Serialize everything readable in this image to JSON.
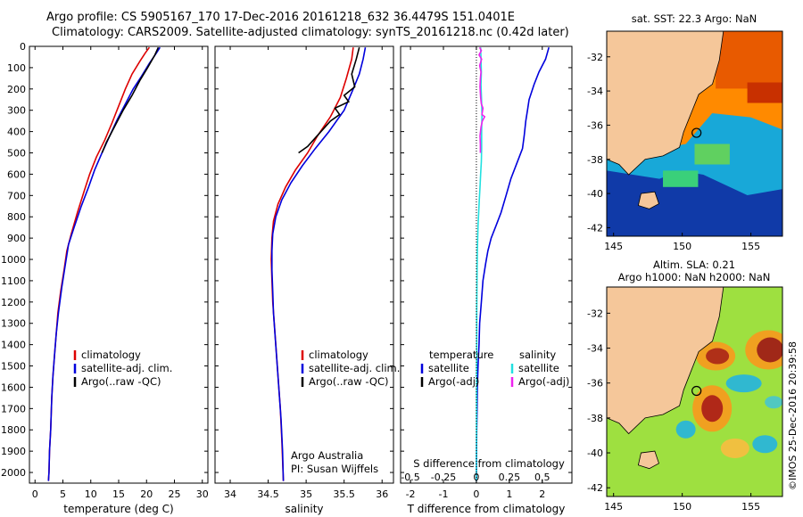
{
  "header": {
    "line1": "Argo profile: CS 5905167_170 17-Dec-2016 20161218_632 36.4479S 151.0401E",
    "line2": "Climatology: CARS2009. Satellite-adjusted climatology: synTS_20161218.nc (0.42d later)"
  },
  "copyright": "©IMOS 25-Dec-2016 20:39:58",
  "colors": {
    "climatology": "#dd0000",
    "satellite": "#0000dd",
    "argo": "#000000",
    "salinity_satellite": "#22e0e0",
    "salinity_argo": "#ee22ee",
    "land": "#f5c79a"
  },
  "chart_data": [
    {
      "id": "temperature",
      "type": "line",
      "xlabel": "temperature (deg C)",
      "ylabel": "",
      "xlim": [
        -1,
        31
      ],
      "ylim": [
        2050,
        0
      ],
      "xticks": [
        0,
        5,
        10,
        15,
        20,
        25,
        30
      ],
      "yticks": [
        0,
        100,
        200,
        300,
        400,
        500,
        600,
        700,
        800,
        900,
        1000,
        1100,
        1200,
        1300,
        1400,
        1500,
        1600,
        1700,
        1800,
        1900,
        2000
      ],
      "legend": [
        "climatology",
        "satellite-adj. clim.",
        "Argo(..raw -QC)"
      ],
      "series": [
        {
          "name": "climatology",
          "color": "#dd0000",
          "points": [
            [
              20.5,
              5
            ],
            [
              19.8,
              30
            ],
            [
              18.8,
              70
            ],
            [
              17.4,
              130
            ],
            [
              16.2,
              200
            ],
            [
              15.0,
              280
            ],
            [
              13.8,
              360
            ],
            [
              12.5,
              440
            ],
            [
              11.0,
              520
            ],
            [
              9.8,
              600
            ],
            [
              8.8,
              680
            ],
            [
              7.6,
              780
            ],
            [
              6.5,
              880
            ],
            [
              5.7,
              960
            ],
            [
              5.2,
              1050
            ],
            [
              4.6,
              1150
            ],
            [
              4.1,
              1250
            ],
            [
              3.8,
              1350
            ],
            [
              3.5,
              1450
            ],
            [
              3.2,
              1550
            ],
            [
              3.0,
              1650
            ],
            [
              2.8,
              1800
            ],
            [
              2.6,
              1900
            ],
            [
              2.5,
              2000
            ],
            [
              2.4,
              2040
            ]
          ]
        },
        {
          "name": "satellite-adj. clim.",
          "color": "#0000dd",
          "points": [
            [
              22.4,
              5
            ],
            [
              21.8,
              30
            ],
            [
              20.5,
              80
            ],
            [
              19.1,
              140
            ],
            [
              17.6,
              200
            ],
            [
              16.4,
              260
            ],
            [
              14.8,
              340
            ],
            [
              13.4,
              420
            ],
            [
              12.0,
              500
            ],
            [
              10.7,
              580
            ],
            [
              9.6,
              660
            ],
            [
              8.3,
              750
            ],
            [
              7.0,
              850
            ],
            [
              6.0,
              930
            ],
            [
              5.4,
              1030
            ],
            [
              4.8,
              1130
            ],
            [
              4.2,
              1250
            ],
            [
              3.8,
              1350
            ],
            [
              3.5,
              1450
            ],
            [
              3.2,
              1550
            ],
            [
              3.0,
              1650
            ],
            [
              2.8,
              1800
            ],
            [
              2.6,
              1900
            ],
            [
              2.5,
              2000
            ],
            [
              2.4,
              2040
            ]
          ]
        },
        {
          "name": "Argo(..raw -QC)",
          "color": "#000000",
          "points": [
            [
              22.1,
              5
            ],
            [
              21.5,
              40
            ],
            [
              20.2,
              100
            ],
            [
              18.8,
              160
            ],
            [
              17.4,
              230
            ],
            [
              15.8,
              300
            ],
            [
              14.6,
              360
            ],
            [
              13.8,
              400
            ],
            [
              12.8,
              450
            ],
            [
              12.0,
              500
            ]
          ]
        }
      ]
    },
    {
      "id": "salinity",
      "type": "line",
      "xlabel": "salinity",
      "ylabel": "",
      "xlim": [
        33.8,
        36.15
      ],
      "ylim": [
        2050,
        0
      ],
      "xticks": [
        34,
        34.5,
        35,
        35.5,
        36
      ],
      "legend": [
        "climatology",
        "satellite-adj. clim.",
        "Argo(..raw -QC)"
      ],
      "annotation": [
        "Argo Australia",
        "PI: Susan Wijffels"
      ],
      "series": [
        {
          "name": "climatology",
          "color": "#dd0000",
          "points": [
            [
              35.62,
              5
            ],
            [
              35.6,
              60
            ],
            [
              35.53,
              150
            ],
            [
              35.45,
              240
            ],
            [
              35.32,
              330
            ],
            [
              35.15,
              420
            ],
            [
              35.02,
              500
            ],
            [
              34.86,
              580
            ],
            [
              34.73,
              660
            ],
            [
              34.63,
              740
            ],
            [
              34.57,
              820
            ],
            [
              34.55,
              900
            ],
            [
              34.54,
              1000
            ],
            [
              34.55,
              1100
            ],
            [
              34.56,
              1200
            ],
            [
              34.58,
              1300
            ],
            [
              34.6,
              1400
            ],
            [
              34.62,
              1500
            ],
            [
              34.64,
              1600
            ],
            [
              34.66,
              1700
            ],
            [
              34.68,
              1850
            ],
            [
              34.7,
              2040
            ]
          ]
        },
        {
          "name": "satellite-adj. clim.",
          "color": "#0000dd",
          "points": [
            [
              35.78,
              5
            ],
            [
              35.75,
              60
            ],
            [
              35.7,
              130
            ],
            [
              35.62,
              200
            ],
            [
              35.5,
              300
            ],
            [
              35.3,
              400
            ],
            [
              35.12,
              480
            ],
            [
              34.95,
              560
            ],
            [
              34.8,
              640
            ],
            [
              34.68,
              720
            ],
            [
              34.6,
              800
            ],
            [
              34.56,
              880
            ],
            [
              34.55,
              960
            ],
            [
              34.55,
              1050
            ],
            [
              34.56,
              1150
            ],
            [
              34.57,
              1250
            ],
            [
              34.59,
              1350
            ],
            [
              34.61,
              1450
            ],
            [
              34.63,
              1550
            ],
            [
              34.65,
              1650
            ],
            [
              34.67,
              1750
            ],
            [
              34.69,
              1900
            ],
            [
              34.7,
              2040
            ]
          ]
        },
        {
          "name": "Argo(..raw -QC)",
          "color": "#000000",
          "points": [
            [
              35.7,
              5
            ],
            [
              35.66,
              60
            ],
            [
              35.6,
              130
            ],
            [
              35.64,
              190
            ],
            [
              35.5,
              230
            ],
            [
              35.56,
              260
            ],
            [
              35.38,
              290
            ],
            [
              35.44,
              320
            ],
            [
              35.32,
              350
            ],
            [
              35.22,
              390
            ],
            [
              35.12,
              430
            ],
            [
              35.02,
              470
            ],
            [
              34.9,
              500
            ]
          ]
        }
      ]
    },
    {
      "id": "difference",
      "type": "line",
      "xlabel": "T difference from climatology",
      "xlabel_top": "S difference from climatology",
      "xlim": [
        -2.3,
        2.9
      ],
      "ylim": [
        2050,
        0
      ],
      "xticks": [
        -2,
        -1,
        0,
        1,
        2
      ],
      "s_xticks": [
        -0.5,
        -0.25,
        0,
        0.25,
        0.5
      ],
      "s_tick_labels": [
        "-0.5",
        "-0.25",
        "0",
        "0.25",
        "0.5"
      ],
      "legend_groups": [
        {
          "title": "temperature",
          "items": [
            "satellite",
            "Argo(-adj)"
          ]
        },
        {
          "title": "salinity",
          "items": [
            "satellite",
            "Argo(-adj)"
          ]
        }
      ],
      "series": [
        {
          "name": "temperature satellite",
          "color": "#0000dd",
          "points": [
            [
              2.2,
              5
            ],
            [
              2.1,
              60
            ],
            [
              1.9,
              120
            ],
            [
              1.75,
              180
            ],
            [
              1.6,
              250
            ],
            [
              1.55,
              300
            ],
            [
              1.5,
              350
            ],
            [
              1.45,
              420
            ],
            [
              1.4,
              480
            ],
            [
              1.3,
              520
            ],
            [
              1.2,
              560
            ],
            [
              1.05,
              620
            ],
            [
              0.9,
              700
            ],
            [
              0.75,
              780
            ],
            [
              0.6,
              840
            ],
            [
              0.45,
              900
            ],
            [
              0.35,
              960
            ],
            [
              0.28,
              1020
            ],
            [
              0.2,
              1100
            ],
            [
              0.15,
              1200
            ],
            [
              0.1,
              1300
            ],
            [
              0.08,
              1400
            ],
            [
              0.05,
              1500
            ],
            [
              0.03,
              1600
            ],
            [
              0.02,
              1700
            ],
            [
              0.01,
              1800
            ],
            [
              0,
              2040
            ]
          ]
        },
        {
          "name": "salinity satellite",
          "color": "#22e0e0",
          "points": [
            [
              0.13,
              5
            ],
            [
              0.14,
              60
            ],
            [
              0.15,
              120
            ],
            [
              0.14,
              180
            ],
            [
              0.16,
              260
            ],
            [
              0.17,
              320
            ],
            [
              0.16,
              400
            ],
            [
              0.16,
              480
            ],
            [
              0.15,
              540
            ],
            [
              0.13,
              600
            ],
            [
              0.11,
              660
            ],
            [
              0.09,
              720
            ],
            [
              0.07,
              780
            ],
            [
              0.05,
              840
            ],
            [
              0.04,
              900
            ],
            [
              0.03,
              960
            ],
            [
              0.02,
              1050
            ],
            [
              0.015,
              1150
            ],
            [
              0.01,
              1250
            ],
            [
              0.01,
              1400
            ],
            [
              0.005,
              1600
            ],
            [
              0.005,
              1800
            ],
            [
              0,
              2040
            ]
          ]
        },
        {
          "name": "salinity Argo(-adj)",
          "color": "#ee22ee",
          "points": [
            [
              0.1,
              5
            ],
            [
              0.15,
              20
            ],
            [
              0.08,
              40
            ],
            [
              0.16,
              60
            ],
            [
              0.1,
              90
            ],
            [
              0.14,
              120
            ],
            [
              0.12,
              150
            ],
            [
              0.11,
              190
            ],
            [
              0.13,
              240
            ],
            [
              0.15,
              270
            ],
            [
              0.2,
              290
            ],
            [
              0.17,
              320
            ],
            [
              0.25,
              330
            ],
            [
              0.18,
              350
            ],
            [
              0.14,
              380
            ],
            [
              0.11,
              420
            ],
            [
              0.12,
              460
            ],
            [
              0.12,
              500
            ]
          ]
        }
      ]
    },
    {
      "id": "map-sst",
      "type": "heatmap",
      "title": "sat. SST: 22.3 Argo: NaN",
      "xticks": [
        145,
        150,
        155
      ],
      "yticks": [
        -32,
        -34,
        -36,
        -38,
        -40,
        -42
      ],
      "xlim": [
        144.5,
        157.3
      ],
      "ylim": [
        -42.5,
        -30.5
      ],
      "marker": {
        "lon": 151.04,
        "lat": -36.45
      }
    },
    {
      "id": "map-sla",
      "type": "heatmap",
      "title_lines": [
        "Altim. SLA: 0.21",
        "Argo h1000: NaN h2000: NaN"
      ],
      "xticks": [
        145,
        150,
        155
      ],
      "yticks": [
        -32,
        -34,
        -36,
        -38,
        -40,
        -42
      ],
      "xlim": [
        144.5,
        157.3
      ],
      "ylim": [
        -42.5,
        -30.5
      ],
      "marker": {
        "lon": 151.04,
        "lat": -36.45
      }
    }
  ]
}
